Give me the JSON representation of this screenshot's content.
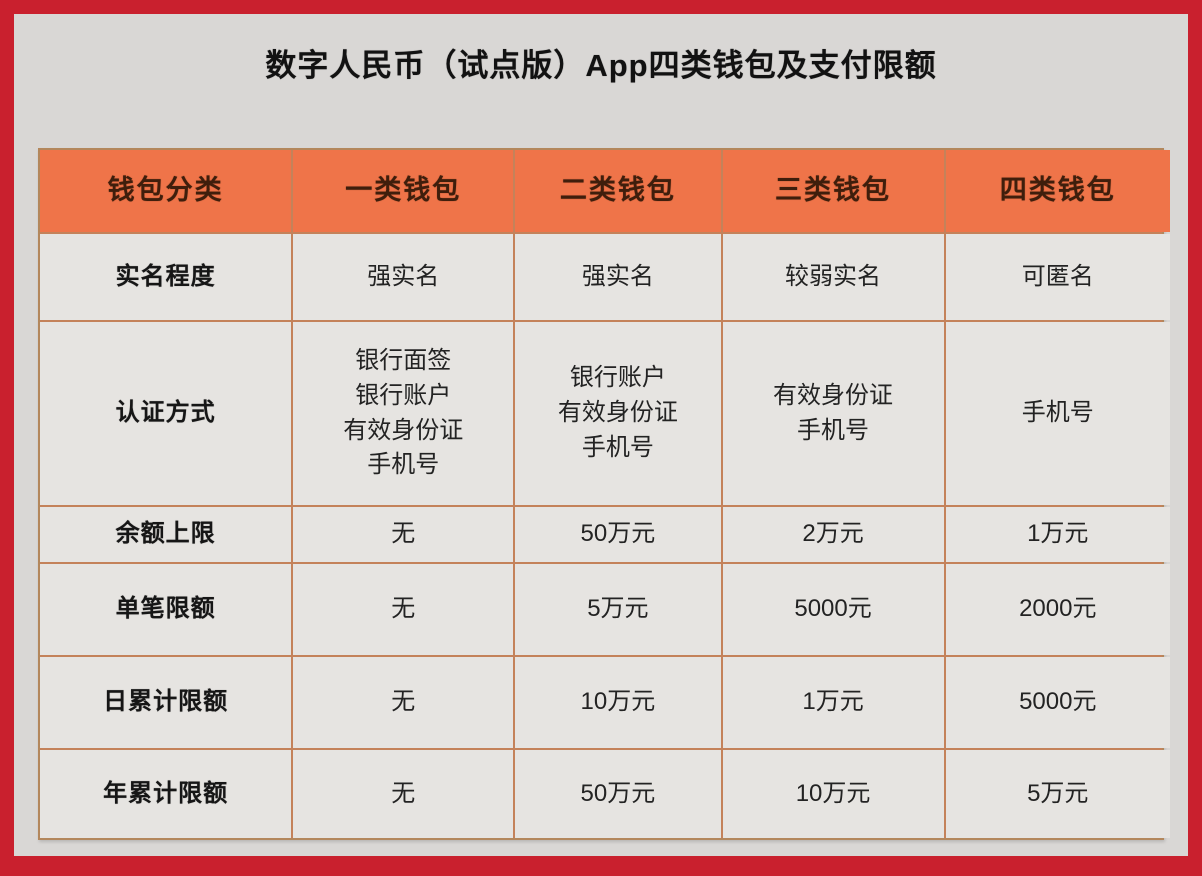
{
  "page": {
    "title": "数字人民币（试点版）App四类钱包及支付限额"
  },
  "colors": {
    "frame_red": "#c9202e",
    "panel_background": "#d9d7d5",
    "header_orange": "#ef7449",
    "header_text_brown": "#3f1e0c",
    "grid_line_tan": "#c4825a",
    "cell_background": "#e6e4e1",
    "body_text": "#232323"
  },
  "table": {
    "columns": [
      "钱包分类",
      "一类钱包",
      "二类钱包",
      "三类钱包",
      "四类钱包"
    ],
    "rows": [
      {
        "label": "实名程度",
        "values": [
          "强实名",
          "强实名",
          "较弱实名",
          "可匿名"
        ]
      },
      {
        "label": "认证方式",
        "values": [
          "银行面签\n银行账户\n有效身份证\n手机号",
          "银行账户\n有效身份证\n手机号",
          "有效身份证\n手机号",
          "手机号"
        ]
      },
      {
        "label": "余额上限",
        "values": [
          "无",
          "50万元",
          "2万元",
          "1万元"
        ]
      },
      {
        "label": "单笔限额",
        "values": [
          "无",
          "5万元",
          "5000元",
          "2000元"
        ]
      },
      {
        "label": "日累计限额",
        "values": [
          "无",
          "10万元",
          "1万元",
          "5000元"
        ]
      },
      {
        "label": "年累计限额",
        "values": [
          "无",
          "50万元",
          "10万元",
          "5万元"
        ]
      }
    ]
  }
}
